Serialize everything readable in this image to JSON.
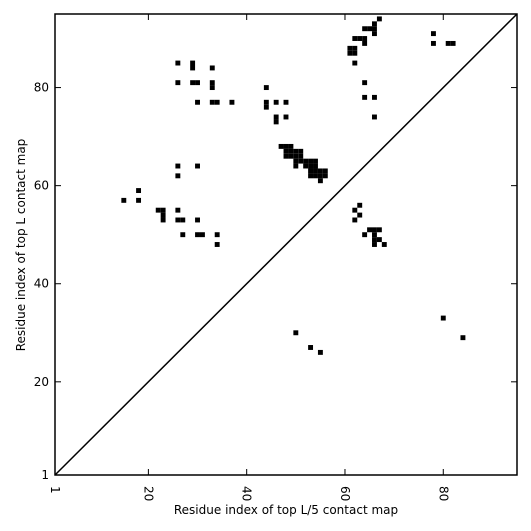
{
  "chart_data": {
    "type": "scatter",
    "xlabel": "Residue index of top L/5 contact map",
    "ylabel": "Residue index of top L contact map",
    "xlim": [
      1,
      95
    ],
    "ylim": [
      1,
      95
    ],
    "x_ticks": [
      1,
      20,
      40,
      60,
      80
    ],
    "y_ticks": [
      1,
      20,
      40,
      60,
      80
    ],
    "diagonal": true,
    "marker": "square",
    "colors": {
      "points": "#000000",
      "frame": "#000000",
      "background": "#ffffff"
    },
    "series": [
      {
        "region": "upper",
        "points": [
          [
            26,
            85
          ],
          [
            29,
            85
          ],
          [
            29,
            84
          ],
          [
            33,
            84
          ],
          [
            26,
            81
          ],
          [
            29,
            81
          ],
          [
            30,
            81
          ],
          [
            33,
            81
          ],
          [
            33,
            80
          ],
          [
            30,
            77
          ],
          [
            33,
            77
          ],
          [
            34,
            77
          ],
          [
            37,
            77
          ],
          [
            44,
            80
          ],
          [
            44,
            77
          ],
          [
            44,
            76
          ],
          [
            46,
            77
          ],
          [
            48,
            77
          ],
          [
            46,
            74
          ],
          [
            46,
            73
          ],
          [
            48,
            74
          ],
          [
            47,
            68
          ],
          [
            48,
            68
          ],
          [
            49,
            68
          ],
          [
            48,
            67
          ],
          [
            49,
            67
          ],
          [
            50,
            67
          ],
          [
            51,
            67
          ],
          [
            48,
            66
          ],
          [
            49,
            66
          ],
          [
            50,
            66
          ],
          [
            51,
            66
          ],
          [
            50,
            65
          ],
          [
            51,
            65
          ],
          [
            52,
            65
          ],
          [
            53,
            65
          ],
          [
            54,
            65
          ],
          [
            50,
            64
          ],
          [
            52,
            64
          ],
          [
            53,
            64
          ],
          [
            54,
            64
          ],
          [
            53,
            63
          ],
          [
            54,
            63
          ],
          [
            55,
            63
          ],
          [
            56,
            63
          ],
          [
            53,
            62
          ],
          [
            54,
            62
          ],
          [
            55,
            62
          ],
          [
            56,
            62
          ],
          [
            55,
            61
          ],
          [
            61,
            88
          ],
          [
            62,
            88
          ],
          [
            61,
            87
          ],
          [
            62,
            87
          ],
          [
            62,
            90
          ],
          [
            63,
            90
          ],
          [
            64,
            90
          ],
          [
            64,
            89
          ],
          [
            64,
            92
          ],
          [
            65,
            92
          ],
          [
            66,
            92
          ],
          [
            66,
            93
          ],
          [
            66,
            91
          ],
          [
            67,
            94
          ],
          [
            62,
            85
          ],
          [
            64,
            81
          ],
          [
            64,
            78
          ],
          [
            66,
            78
          ],
          [
            66,
            74
          ],
          [
            78,
            91
          ],
          [
            78,
            89
          ],
          [
            81,
            89
          ],
          [
            82,
            89
          ],
          [
            26,
            64
          ],
          [
            30,
            64
          ],
          [
            26,
            62
          ],
          [
            18,
            59
          ],
          [
            15,
            57
          ],
          [
            18,
            57
          ],
          [
            22,
            55
          ],
          [
            23,
            55
          ],
          [
            23,
            54
          ],
          [
            26,
            55
          ],
          [
            23,
            53
          ],
          [
            26,
            53
          ],
          [
            27,
            53
          ],
          [
            30,
            53
          ],
          [
            27,
            50
          ],
          [
            30,
            50
          ],
          [
            31,
            50
          ],
          [
            34,
            50
          ],
          [
            34,
            48
          ],
          [
            63,
            56
          ],
          [
            62,
            55
          ],
          [
            63,
            54
          ],
          [
            62,
            53
          ],
          [
            65,
            51
          ],
          [
            66,
            51
          ],
          [
            67,
            51
          ],
          [
            64,
            50
          ],
          [
            66,
            50
          ],
          [
            67,
            49
          ],
          [
            66,
            49
          ],
          [
            66,
            48
          ],
          [
            68,
            48
          ]
        ]
      },
      {
        "region": "lower",
        "points": [
          [
            50,
            30
          ],
          [
            53,
            27
          ],
          [
            55,
            26
          ],
          [
            80,
            33
          ],
          [
            84,
            29
          ]
        ]
      }
    ]
  }
}
